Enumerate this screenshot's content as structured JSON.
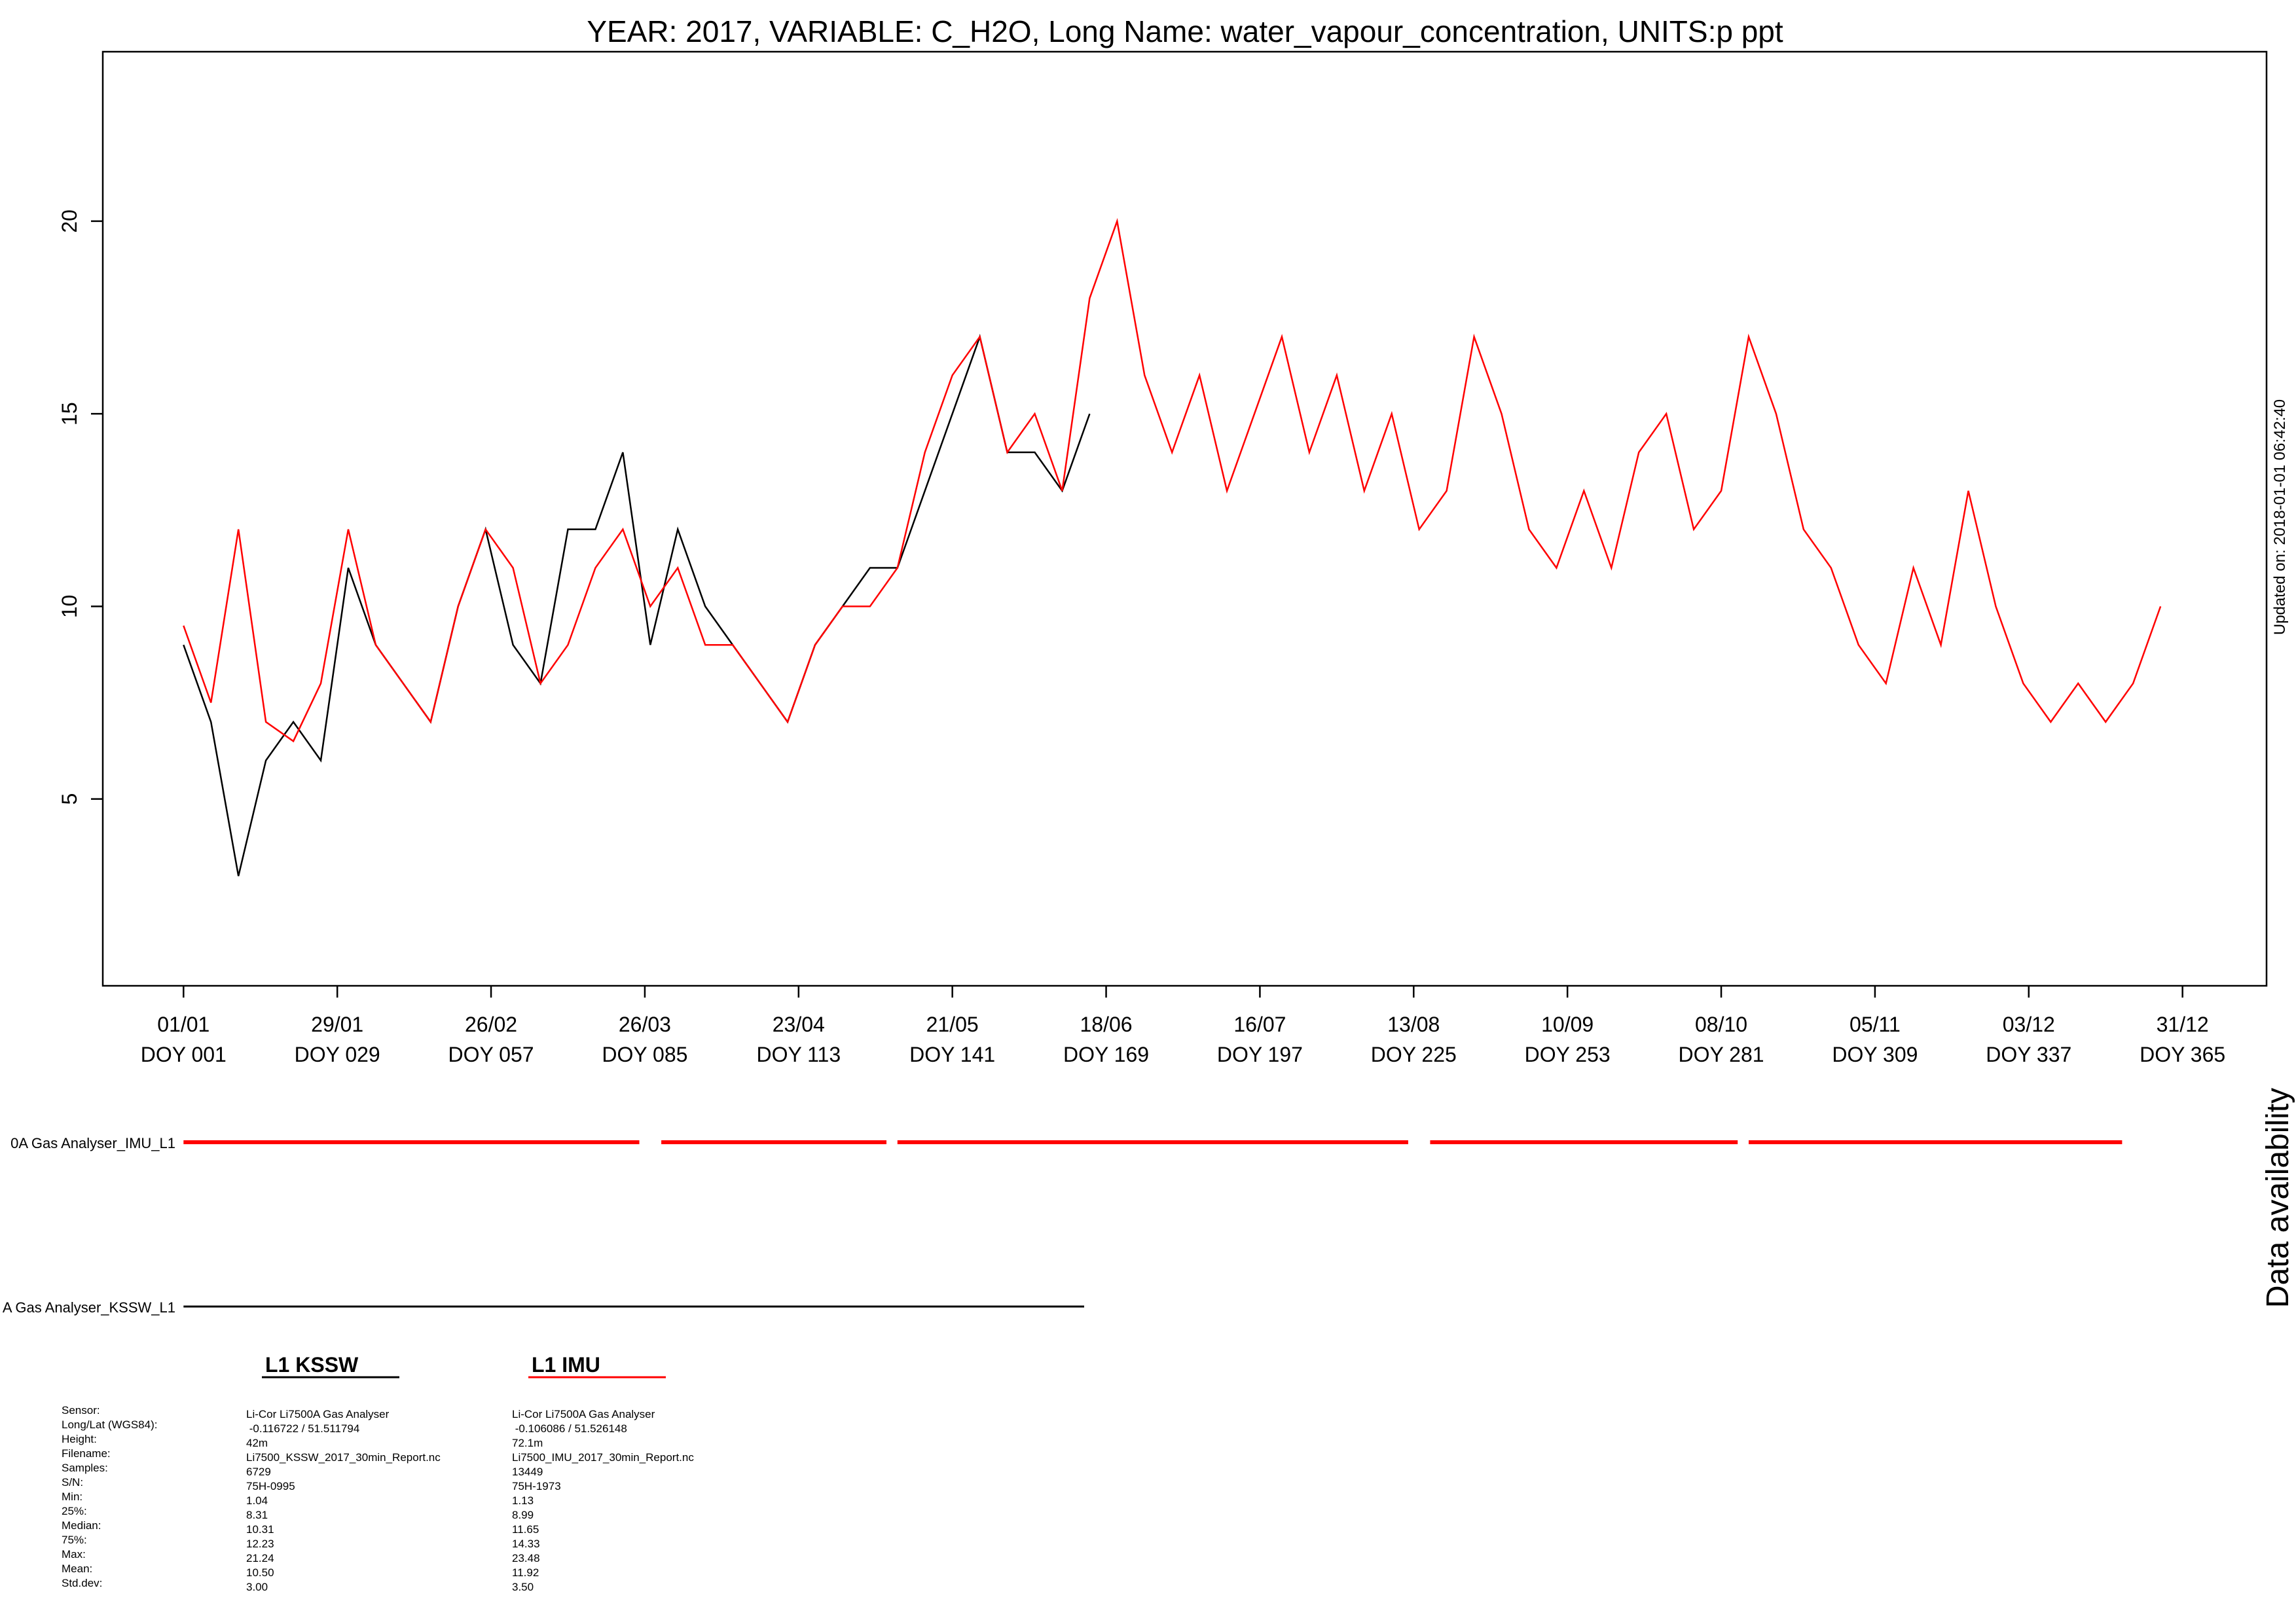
{
  "chart_data": {
    "type": "line",
    "title": "YEAR: 2017, VARIABLE: C_H2O, Long Name: water_vapour_concentration, UNITS:p ppt",
    "updated": "Updated on: 2018-01-01 06:42:40",
    "xlim": [
      -13.7,
      380.3
    ],
    "ylim": [
      0.15,
      24.4
    ],
    "yticks": [
      5,
      10,
      15,
      20
    ],
    "xticks": [
      {
        "value": 1,
        "label": "01/01",
        "label2": "DOY 001"
      },
      {
        "value": 29,
        "label": "29/01",
        "label2": "DOY 029"
      },
      {
        "value": 57,
        "label": "26/02",
        "label2": "DOY 057"
      },
      {
        "value": 85,
        "label": "26/03",
        "label2": "DOY 085"
      },
      {
        "value": 113,
        "label": "23/04",
        "label2": "DOY 113"
      },
      {
        "value": 141,
        "label": "21/05",
        "label2": "DOY 141"
      },
      {
        "value": 169,
        "label": "18/06",
        "label2": "DOY 169"
      },
      {
        "value": 197,
        "label": "16/07",
        "label2": "DOY 197"
      },
      {
        "value": 225,
        "label": "13/08",
        "label2": "DOY 225"
      },
      {
        "value": 253,
        "label": "10/09",
        "label2": "DOY 253"
      },
      {
        "value": 281,
        "label": "08/10",
        "label2": "DOY 281"
      },
      {
        "value": 309,
        "label": "05/11",
        "label2": "DOY 309"
      },
      {
        "value": 337,
        "label": "03/12",
        "label2": "DOY 337"
      },
      {
        "value": 365,
        "label": "31/12",
        "label2": "DOY 365"
      }
    ],
    "series": [
      {
        "name": "L1 KSSW",
        "color": "#000000",
        "x": [
          1,
          6,
          11,
          16,
          21,
          26,
          31,
          36,
          41,
          46,
          51,
          56,
          61,
          66,
          71,
          76,
          81,
          86,
          91,
          96,
          101,
          106,
          111,
          116,
          121,
          126,
          131,
          136,
          141,
          146,
          151,
          156,
          161,
          166
        ],
        "values": [
          9,
          7,
          3,
          6,
          7,
          6,
          11,
          9,
          8,
          7,
          10,
          12,
          9,
          8,
          12,
          12,
          14,
          9,
          12,
          10,
          9,
          8,
          7,
          9,
          10,
          11,
          11,
          13,
          15,
          17,
          14,
          14,
          13,
          15
        ]
      },
      {
        "name": "L1 IMU",
        "color": "#ff0000",
        "x": [
          1,
          6,
          11,
          16,
          21,
          26,
          31,
          36,
          41,
          46,
          51,
          56,
          61,
          66,
          71,
          76,
          81,
          86,
          91,
          96,
          101,
          106,
          111,
          116,
          121,
          126,
          131,
          136,
          141,
          146,
          151,
          156,
          161,
          166,
          171,
          176,
          181,
          186,
          191,
          196,
          201,
          206,
          211,
          216,
          221,
          226,
          231,
          236,
          241,
          246,
          251,
          256,
          261,
          266,
          271,
          276,
          281,
          286,
          291,
          296,
          301,
          306,
          311,
          316,
          321,
          326,
          331,
          336,
          341,
          346,
          351,
          356,
          361
        ],
        "values": [
          9.5,
          7.5,
          12,
          7,
          6.5,
          8,
          12,
          9,
          8,
          7,
          10,
          12,
          11,
          8,
          9,
          11,
          12,
          10,
          11,
          9,
          9,
          8,
          7,
          9,
          10,
          10,
          11,
          14,
          16,
          17,
          14,
          15,
          13,
          18,
          20,
          16,
          14,
          16,
          13,
          15,
          17,
          14,
          16,
          13,
          15,
          12,
          13,
          17,
          15,
          12,
          11,
          13,
          11,
          14,
          15,
          12,
          13,
          17,
          15,
          12,
          11,
          9,
          8,
          11,
          9,
          13,
          10,
          8,
          7,
          8,
          7,
          8,
          10
        ]
      }
    ],
    "availability_title": "Data availability",
    "availability": [
      {
        "label": "0A Gas Analyser_IMU_L1",
        "color": "#ff0000",
        "segments": [
          [
            1,
            84
          ],
          [
            88,
            129
          ],
          [
            131,
            224
          ],
          [
            228,
            284
          ],
          [
            286,
            354
          ]
        ]
      },
      {
        "label": "A Gas Analyser_KSSW_L1",
        "color": "#000000",
        "segments": [
          [
            1,
            165
          ]
        ]
      }
    ],
    "stats": {
      "rows": [
        "Sensor:",
        "Long/Lat (WGS84):",
        "Height:",
        "Filename:",
        "Samples:",
        "S/N:",
        "Min:",
        "25%:",
        "Median:",
        "75%:",
        "Max:",
        "Mean:",
        "Std.dev:"
      ],
      "columns": [
        [
          "Li-Cor Li7500A Gas Analyser",
          " -0.116722 / 51.511794",
          "42m",
          "Li7500_KSSW_2017_30min_Report.nc",
          "6729",
          "75H-0995",
          "1.04",
          "8.31",
          "10.31",
          "12.23",
          "21.24",
          "10.50",
          "3.00"
        ],
        [
          "Li-Cor Li7500A Gas Analyser",
          " -0.106086 / 51.526148",
          "72.1m",
          "Li7500_IMU_2017_30min_Report.nc",
          "13449",
          "75H-1973",
          "1.13",
          "8.99",
          "11.65",
          "14.33",
          "23.48",
          "11.92",
          "3.50"
        ]
      ]
    }
  }
}
